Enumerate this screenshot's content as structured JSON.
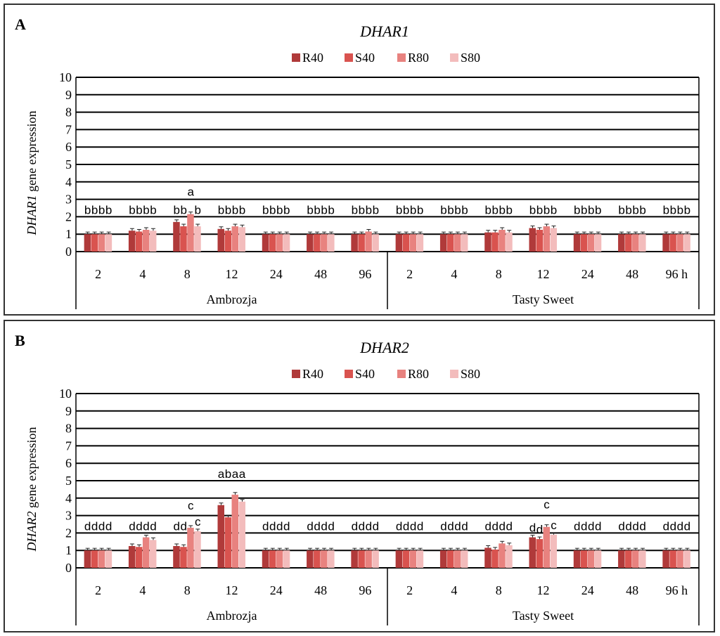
{
  "legend_colors": [
    "#b03a3a",
    "#d9534f",
    "#e8827f",
    "#f3bcbc"
  ],
  "chart_data": [
    {
      "type": "bar",
      "panel_label": "A",
      "title": "DHAR1",
      "ylabel_italic": "DHAR1",
      "ylabel_rest": " gene expression",
      "ylim": [
        0,
        10
      ],
      "yticks": [
        "0",
        "1",
        "2",
        "3",
        "4",
        "5",
        "6",
        "7",
        "8",
        "9",
        "10"
      ],
      "grid": true,
      "legend": "top-center",
      "categories": [
        "2",
        "4",
        "8",
        "12",
        "24",
        "48",
        "96",
        "2",
        "4",
        "8",
        "12",
        "24",
        "48",
        "96 h"
      ],
      "groups": [
        {
          "name": "Ambrozja",
          "count": 7
        },
        {
          "name": "Tasty Sweet",
          "count": 7
        }
      ],
      "series": [
        {
          "name": "R40",
          "values": [
            1.0,
            1.2,
            1.7,
            1.3,
            1.0,
            1.0,
            1.0,
            1.0,
            1.0,
            1.1,
            1.35,
            1.0,
            1.0,
            1.0
          ]
        },
        {
          "name": "S40",
          "values": [
            1.0,
            1.15,
            1.45,
            1.2,
            1.0,
            1.0,
            1.0,
            1.0,
            1.0,
            1.1,
            1.25,
            1.0,
            1.0,
            1.0
          ]
        },
        {
          "name": "R80",
          "values": [
            1.0,
            1.25,
            2.15,
            1.45,
            1.0,
            1.0,
            1.15,
            1.0,
            1.0,
            1.25,
            1.45,
            1.0,
            1.0,
            1.0
          ]
        },
        {
          "name": "S80",
          "values": [
            1.0,
            1.2,
            1.45,
            1.4,
            1.0,
            1.0,
            1.0,
            1.0,
            1.0,
            1.1,
            1.35,
            1.0,
            1.0,
            1.0
          ]
        }
      ],
      "letters": [
        [
          "b",
          "b",
          "b",
          "b"
        ],
        [
          "b",
          "b",
          "b",
          "b"
        ],
        [
          "b",
          "b",
          "a",
          "b"
        ],
        [
          "b",
          "b",
          "b",
          "b"
        ],
        [
          "b",
          "b",
          "b",
          "b"
        ],
        [
          "b",
          "b",
          "b",
          "b"
        ],
        [
          "b",
          "b",
          "b",
          "b"
        ],
        [
          "b",
          "b",
          "b",
          "b"
        ],
        [
          "b",
          "b",
          "b",
          "b"
        ],
        [
          "b",
          "b",
          "b",
          "b"
        ],
        [
          "b",
          "b",
          "b",
          "b"
        ],
        [
          "b",
          "b",
          "b",
          "b"
        ],
        [
          "b",
          "b",
          "b",
          "b"
        ],
        [
          "b",
          "b",
          "b",
          "b"
        ]
      ]
    },
    {
      "type": "bar",
      "panel_label": "B",
      "title": "DHAR2",
      "ylabel_italic": "DHAR2",
      "ylabel_rest": " gene expression",
      "ylim": [
        0,
        10
      ],
      "yticks": [
        "0",
        "1",
        "2",
        "3",
        "4",
        "5",
        "6",
        "7",
        "8",
        "9",
        "10"
      ],
      "grid": true,
      "legend": "top-center",
      "categories": [
        "2",
        "4",
        "8",
        "12",
        "24",
        "48",
        "96",
        "2",
        "4",
        "8",
        "12",
        "24",
        "48",
        "96 h"
      ],
      "groups": [
        {
          "name": "Ambrozja",
          "count": 7
        },
        {
          "name": "Tasty Sweet",
          "count": 7
        }
      ],
      "series": [
        {
          "name": "R40",
          "values": [
            1.0,
            1.25,
            1.25,
            3.6,
            1.0,
            1.0,
            1.0,
            1.0,
            1.0,
            1.15,
            1.75,
            1.0,
            1.0,
            1.0
          ]
        },
        {
          "name": "S40",
          "values": [
            1.0,
            1.2,
            1.2,
            2.9,
            1.0,
            1.0,
            1.0,
            1.0,
            1.0,
            1.05,
            1.65,
            1.0,
            1.0,
            1.0
          ]
        },
        {
          "name": "R80",
          "values": [
            1.0,
            1.75,
            2.3,
            4.2,
            1.0,
            1.0,
            1.0,
            1.0,
            1.0,
            1.4,
            2.35,
            1.0,
            1.0,
            1.0
          ]
        },
        {
          "name": "S80",
          "values": [
            1.0,
            1.6,
            2.1,
            3.8,
            1.0,
            1.0,
            1.0,
            1.0,
            1.0,
            1.3,
            1.9,
            1.0,
            1.0,
            1.0
          ]
        }
      ],
      "letters": [
        [
          "d",
          "d",
          "d",
          "d"
        ],
        [
          "d",
          "d",
          "d",
          "d"
        ],
        [
          "d",
          "d",
          "c",
          "c"
        ],
        [
          "a",
          "b",
          "a",
          "a"
        ],
        [
          "d",
          "d",
          "d",
          "d"
        ],
        [
          "d",
          "d",
          "d",
          "d"
        ],
        [
          "d",
          "d",
          "d",
          "d"
        ],
        [
          "d",
          "d",
          "d",
          "d"
        ],
        [
          "d",
          "d",
          "d",
          "d"
        ],
        [
          "d",
          "d",
          "d",
          "d"
        ],
        [
          "d",
          "d",
          "c",
          "c"
        ],
        [
          "d",
          "d",
          "d",
          "d"
        ],
        [
          "d",
          "d",
          "d",
          "d"
        ],
        [
          "d",
          "d",
          "d",
          "d"
        ]
      ]
    }
  ]
}
